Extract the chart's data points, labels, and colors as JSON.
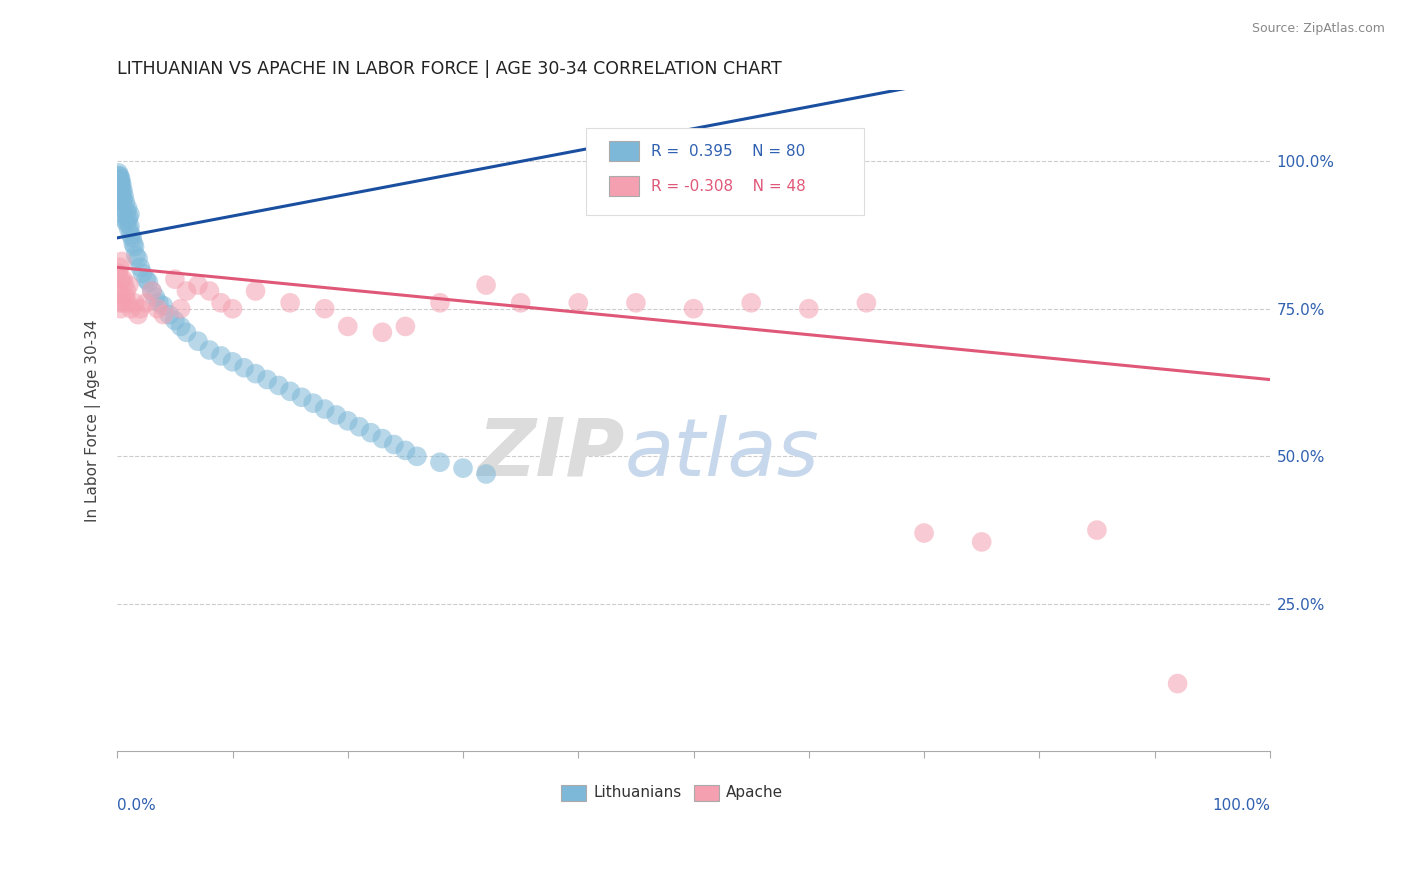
{
  "title": "LITHUANIAN VS APACHE IN LABOR FORCE | AGE 30-34 CORRELATION CHART",
  "source": "Source: ZipAtlas.com",
  "ylabel": "In Labor Force | Age 30-34",
  "legend_blue_label": "Lithuanians",
  "legend_pink_label": "Apache",
  "R_blue": 0.395,
  "N_blue": 80,
  "R_pink": -0.308,
  "N_pink": 48,
  "blue_color": "#7EB8D8",
  "pink_color": "#F4A0B0",
  "blue_line_color": "#1A4FA0",
  "pink_line_color": "#E05878",
  "watermark_zip": "ZIP",
  "watermark_atlas": "atlas",
  "blue_scatter_x": [
    0.001,
    0.001,
    0.001,
    0.001,
    0.001,
    0.001,
    0.001,
    0.001,
    0.002,
    0.002,
    0.002,
    0.002,
    0.002,
    0.002,
    0.002,
    0.003,
    0.003,
    0.003,
    0.003,
    0.003,
    0.004,
    0.004,
    0.004,
    0.004,
    0.005,
    0.005,
    0.005,
    0.006,
    0.006,
    0.007,
    0.007,
    0.008,
    0.008,
    0.009,
    0.009,
    0.01,
    0.01,
    0.011,
    0.011,
    0.012,
    0.013,
    0.014,
    0.015,
    0.016,
    0.018,
    0.02,
    0.022,
    0.025,
    0.027,
    0.03,
    0.033,
    0.036,
    0.04,
    0.045,
    0.05,
    0.055,
    0.06,
    0.07,
    0.08,
    0.09,
    0.1,
    0.11,
    0.12,
    0.13,
    0.14,
    0.15,
    0.16,
    0.17,
    0.18,
    0.19,
    0.2,
    0.21,
    0.22,
    0.23,
    0.24,
    0.25,
    0.26,
    0.28,
    0.3,
    0.32
  ],
  "blue_scatter_y": [
    0.95,
    0.96,
    0.97,
    0.98,
    0.96,
    0.94,
    0.975,
    0.955,
    0.95,
    0.96,
    0.97,
    0.945,
    0.965,
    0.975,
    0.955,
    0.94,
    0.96,
    0.965,
    0.97,
    0.945,
    0.93,
    0.95,
    0.96,
    0.94,
    0.935,
    0.92,
    0.95,
    0.91,
    0.94,
    0.9,
    0.93,
    0.895,
    0.915,
    0.9,
    0.92,
    0.885,
    0.905,
    0.89,
    0.91,
    0.875,
    0.87,
    0.86,
    0.855,
    0.84,
    0.835,
    0.82,
    0.81,
    0.8,
    0.795,
    0.78,
    0.77,
    0.76,
    0.755,
    0.74,
    0.73,
    0.72,
    0.71,
    0.695,
    0.68,
    0.67,
    0.66,
    0.65,
    0.64,
    0.63,
    0.62,
    0.61,
    0.6,
    0.59,
    0.58,
    0.57,
    0.56,
    0.55,
    0.54,
    0.53,
    0.52,
    0.51,
    0.5,
    0.49,
    0.48,
    0.47
  ],
  "pink_scatter_x": [
    0.001,
    0.001,
    0.002,
    0.002,
    0.003,
    0.003,
    0.004,
    0.005,
    0.005,
    0.006,
    0.007,
    0.008,
    0.009,
    0.01,
    0.012,
    0.015,
    0.018,
    0.02,
    0.025,
    0.03,
    0.035,
    0.04,
    0.05,
    0.055,
    0.06,
    0.07,
    0.08,
    0.09,
    0.1,
    0.12,
    0.15,
    0.18,
    0.2,
    0.23,
    0.25,
    0.28,
    0.32,
    0.35,
    0.4,
    0.45,
    0.5,
    0.55,
    0.6,
    0.65,
    0.7,
    0.75,
    0.85,
    0.92
  ],
  "pink_scatter_y": [
    0.81,
    0.78,
    0.82,
    0.76,
    0.8,
    0.75,
    0.83,
    0.8,
    0.76,
    0.79,
    0.77,
    0.78,
    0.76,
    0.79,
    0.75,
    0.76,
    0.74,
    0.75,
    0.76,
    0.78,
    0.75,
    0.74,
    0.8,
    0.75,
    0.78,
    0.79,
    0.78,
    0.76,
    0.75,
    0.78,
    0.76,
    0.75,
    0.72,
    0.71,
    0.72,
    0.76,
    0.79,
    0.76,
    0.76,
    0.76,
    0.75,
    0.76,
    0.75,
    0.76,
    0.37,
    0.355,
    0.375,
    0.115
  ]
}
